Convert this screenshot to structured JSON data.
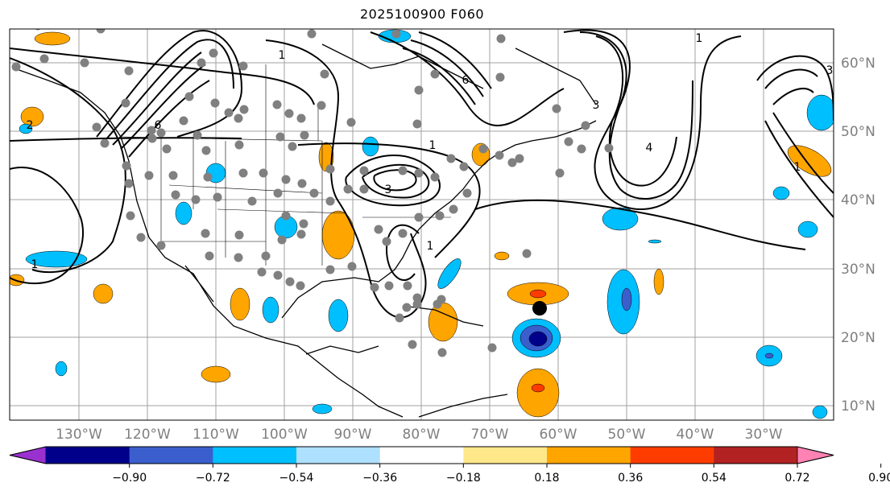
{
  "title": "2025100900 F060",
  "lon_labels": [
    "130°W",
    "120°W",
    "110°W",
    "100°W",
    "90°W",
    "80°W",
    "70°W",
    "60°W",
    "50°W",
    "40°W",
    "30°W"
  ],
  "lat_labels": [
    "60°N",
    "50°N",
    "40°N",
    "30°N",
    "20°N",
    "10°N"
  ],
  "colorbar": {
    "ticks": [
      "−0.90",
      "−0.72",
      "−0.54",
      "−0.36",
      "−0.18",
      "0.18",
      "0.36",
      "0.54",
      "0.72",
      "0.90"
    ],
    "colors": [
      "#9b30d0",
      "#00008b",
      "#3a5fcd",
      "#00bfff",
      "#aee0ff",
      "#ffffff",
      "#ffe88a",
      "#ffa500",
      "#ff3c00",
      "#b22222",
      "#ff82b4"
    ]
  },
  "contour_labels": [
    "1",
    "1",
    "6",
    "2",
    "1",
    "3",
    "6",
    "3",
    "1",
    "4",
    "1",
    "1",
    "3"
  ],
  "marker": {
    "name": "storm-center",
    "lon": -63,
    "lat": 24
  }
}
